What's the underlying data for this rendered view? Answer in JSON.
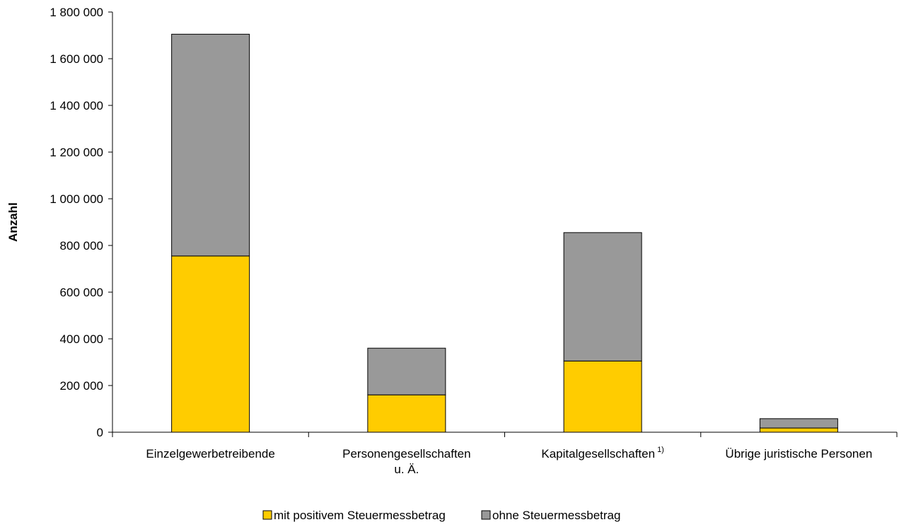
{
  "chart_data": {
    "type": "bar",
    "stacked": true,
    "ylabel": "Anzahl",
    "xlabel": "",
    "ylim": [
      0,
      1800000
    ],
    "yticks": [
      0,
      200000,
      400000,
      600000,
      800000,
      1000000,
      1200000,
      1400000,
      1600000,
      1800000
    ],
    "ytick_labels": [
      "0",
      "200 000",
      "400 000",
      "600 000",
      "800 000",
      "1 000 000",
      "1 200 000",
      "1 400 000",
      "1 600 000",
      "1 800 000"
    ],
    "categories": [
      {
        "lines": [
          "Einzelgewerbetreibende"
        ],
        "footnote": ""
      },
      {
        "lines": [
          "Personengesellschaften",
          "u. Ä."
        ],
        "footnote": ""
      },
      {
        "lines": [
          "Kapitalgesellschaften"
        ],
        "footnote": "1)"
      },
      {
        "lines": [
          "Übrige juristische Personen"
        ],
        "footnote": ""
      }
    ],
    "series": [
      {
        "name": "mit positivem Steuermessbetrag",
        "color": "#ffcc00",
        "values": [
          755000,
          160000,
          305000,
          18000
        ]
      },
      {
        "name": "ohne Steuermessbetrag",
        "color": "#999999",
        "values": [
          950000,
          200000,
          550000,
          40000
        ]
      }
    ],
    "legend_position": "bottom",
    "grid": false
  }
}
